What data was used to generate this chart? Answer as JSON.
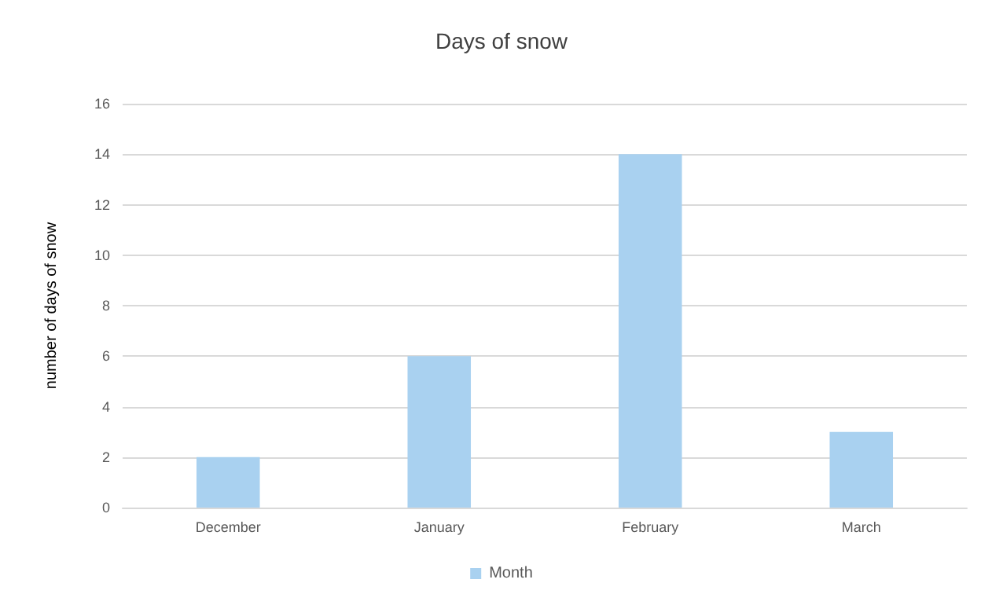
{
  "chart_data": {
    "type": "bar",
    "title": "Days of snow",
    "ylabel": "number of days of snow",
    "categories": [
      "December",
      "January",
      "February",
      "March"
    ],
    "series": [
      {
        "name": "Month",
        "color": "#a9d1f0",
        "values": [
          2,
          6,
          14,
          3
        ]
      }
    ],
    "ylim": [
      0,
      16
    ],
    "yticks": [
      0,
      2,
      4,
      6,
      8,
      10,
      12,
      14,
      16
    ],
    "grid": "y",
    "legend": "bottom"
  }
}
